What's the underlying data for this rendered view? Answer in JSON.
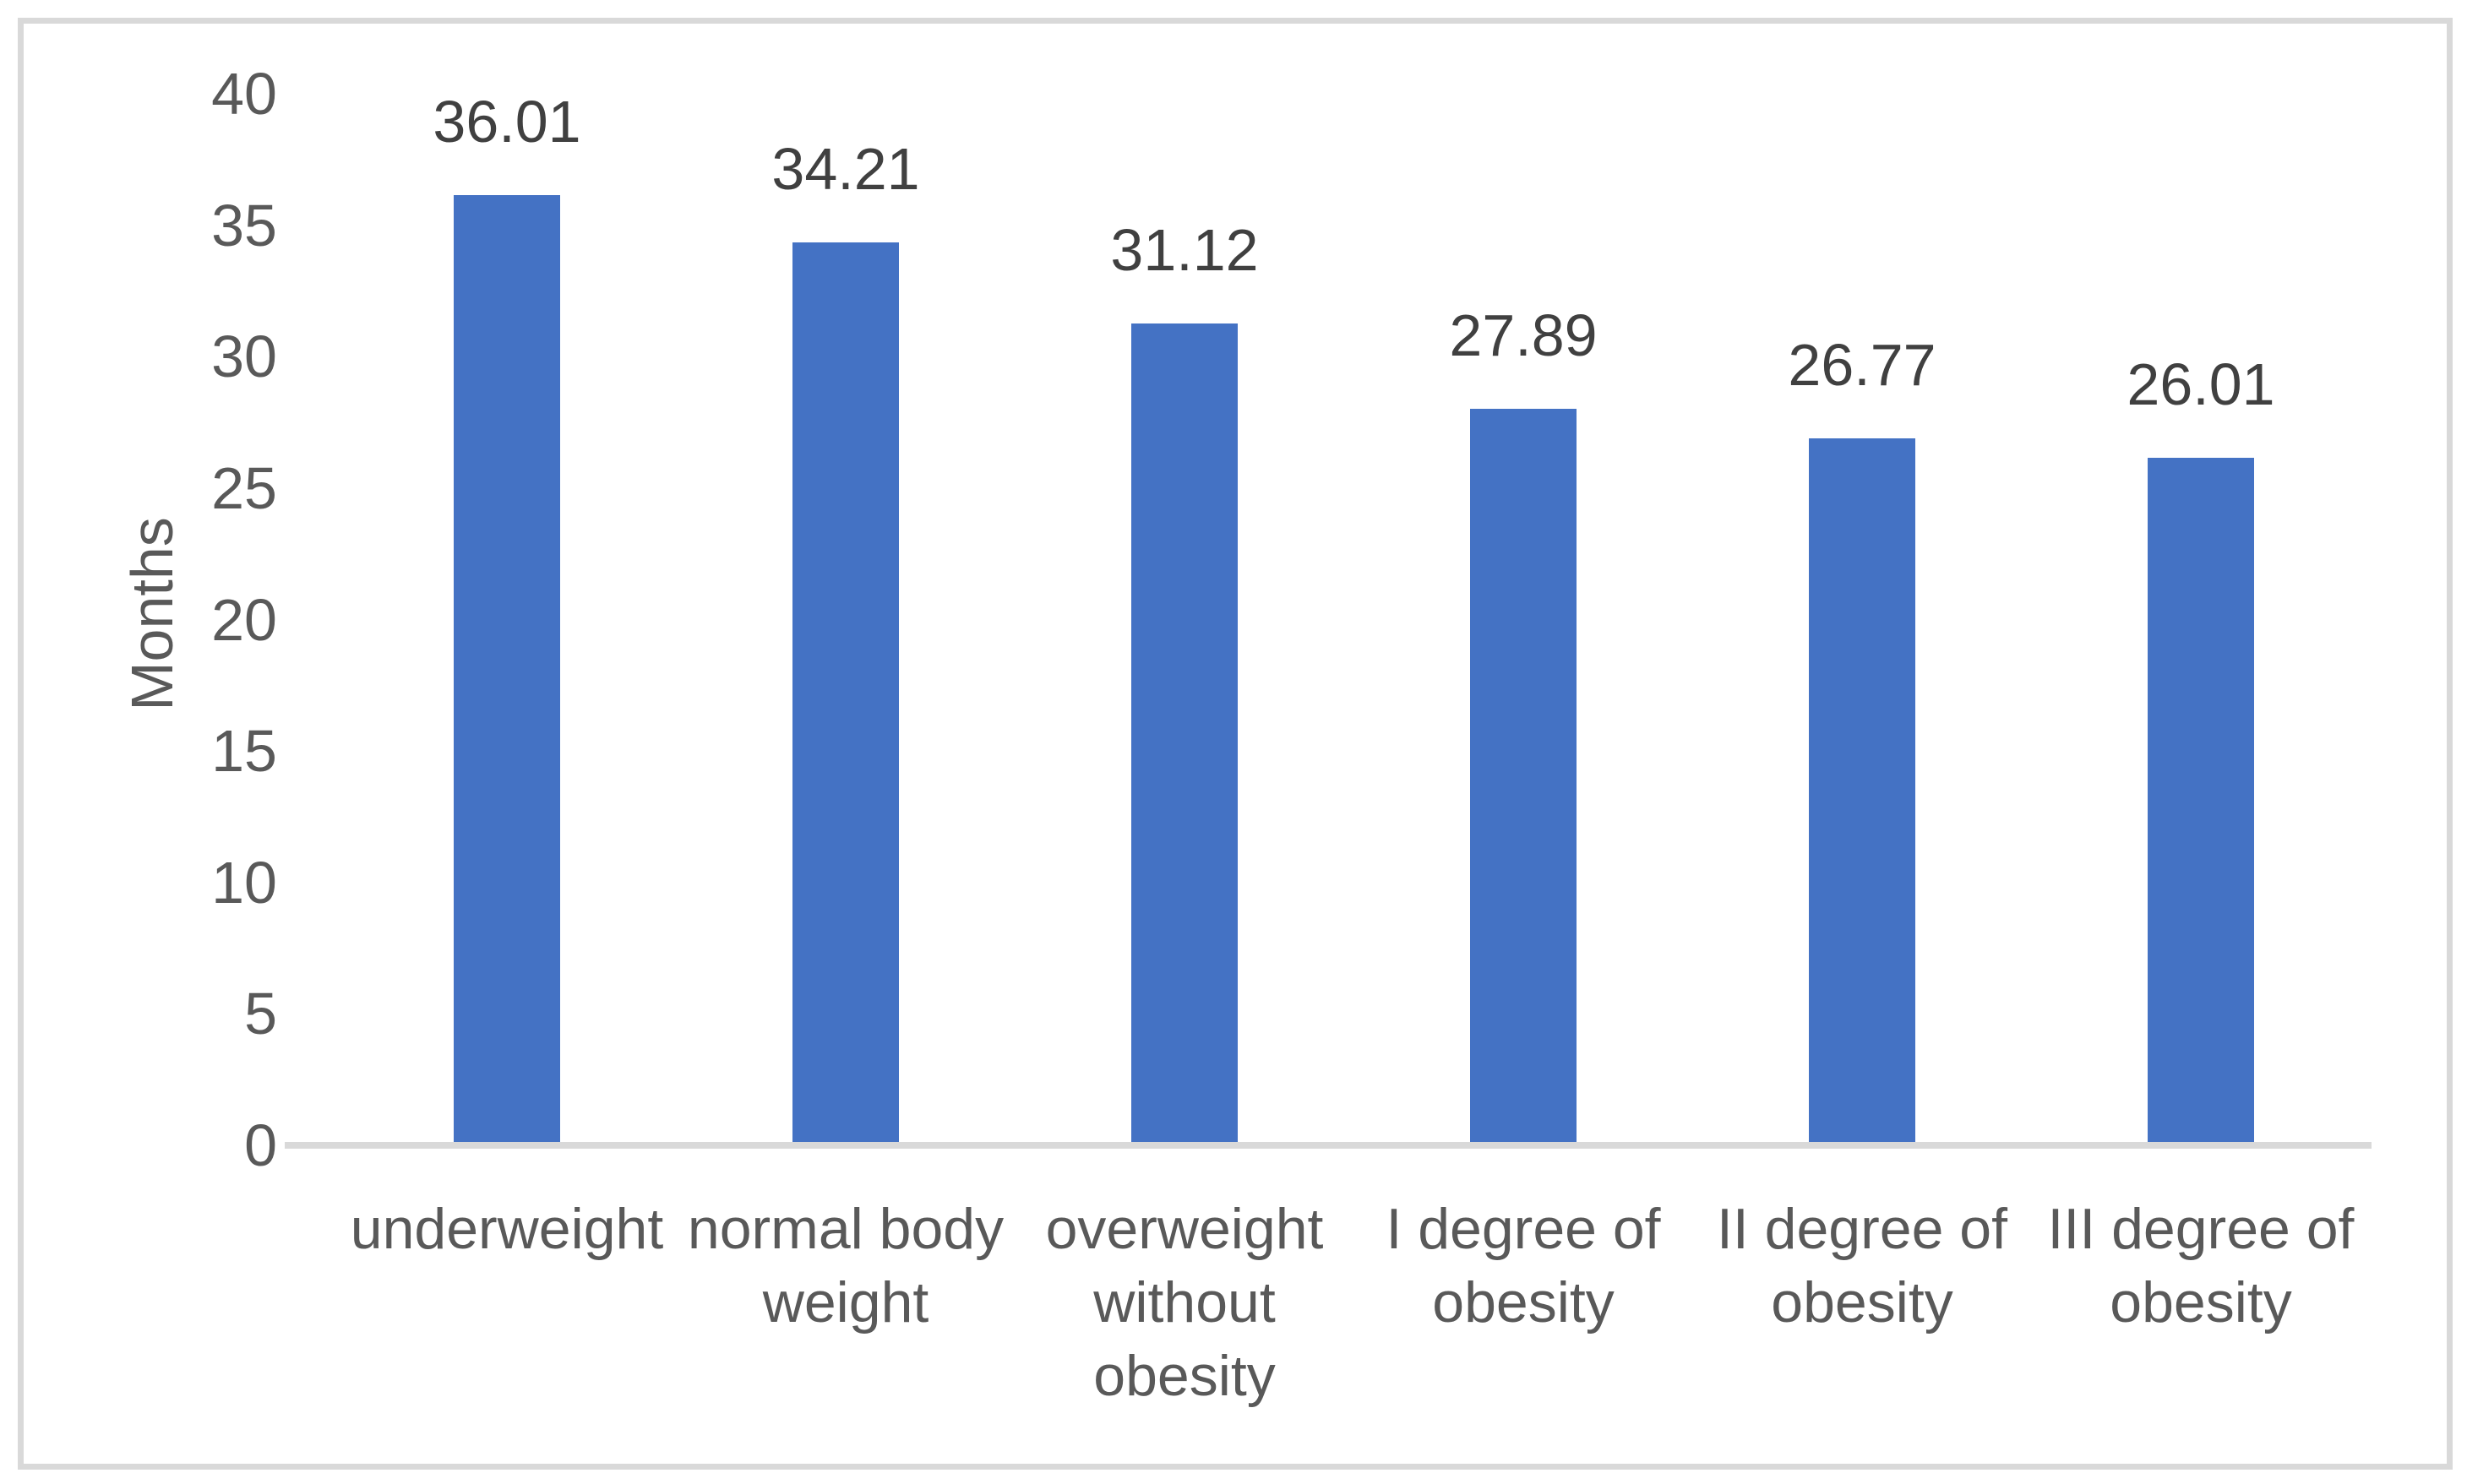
{
  "chart_data": {
    "type": "bar",
    "categories": [
      "underweight",
      "normal body weight",
      "overweight without obesity",
      "I degree of obesity",
      "II degree of obesity",
      "III degree of obesity"
    ],
    "values": [
      36.01,
      34.21,
      31.12,
      27.89,
      26.77,
      26.01
    ],
    "value_labels": [
      "36.01",
      "34.21",
      "31.12",
      "27.89",
      "26.77",
      "26.01"
    ],
    "xlabel": "",
    "ylabel": "Months",
    "ylim": [
      0,
      40
    ],
    "yticks": [
      0,
      5,
      10,
      15,
      20,
      25,
      30,
      35,
      40
    ],
    "grid": false,
    "legend": false,
    "data_labels_position": "outside-end",
    "colors": {
      "bar": "#4472c4",
      "axis_line": "#d9d9d9",
      "frame_border": "#d9d9d9",
      "tick_label": "#595959",
      "category_label": "#595959",
      "data_label": "#404040",
      "axis_title": "#595959",
      "background": "#ffffff"
    }
  }
}
